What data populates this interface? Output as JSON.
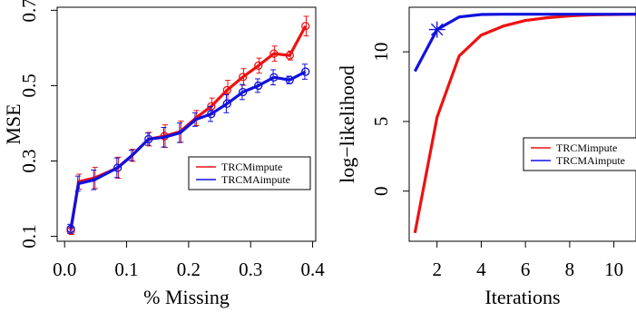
{
  "chart_data": [
    {
      "type": "line",
      "xlabel": "% Missing",
      "ylabel": "MSE",
      "xlim": [
        0.0,
        0.4
      ],
      "ylim": [
        0.1,
        0.7
      ],
      "x_ticks": [
        0.0,
        0.1,
        0.2,
        0.3,
        0.4
      ],
      "x_tick_labels": [
        "0.0",
        "0.1",
        "0.2",
        "0.3",
        "0.4"
      ],
      "y_ticks": [
        0.1,
        0.3,
        0.5,
        0.7
      ],
      "y_tick_labels": [
        "0.1",
        "0.3",
        "0.5",
        "0.7"
      ],
      "grid": false,
      "legend_position": "center-right",
      "x": [
        0.01,
        0.0225,
        0.048,
        0.0855,
        0.109,
        0.1355,
        0.161,
        0.1865,
        0.2115,
        0.2365,
        0.262,
        0.2875,
        0.3125,
        0.3375,
        0.363,
        0.3885
      ],
      "series": [
        {
          "name": "TRCMimpute",
          "color": "#ee1111",
          "values": [
            0.115,
            0.245,
            0.255,
            0.282,
            0.315,
            0.358,
            0.366,
            0.378,
            0.414,
            0.445,
            0.488,
            0.523,
            0.553,
            0.585,
            0.58,
            0.658
          ],
          "error": [
            0.01,
            0.02,
            0.028,
            0.028,
            0.016,
            0.018,
            0.03,
            0.028,
            0.02,
            0.022,
            0.026,
            0.022,
            0.02,
            0.02,
            0.012,
            0.026
          ],
          "markers": [
            true,
            false,
            false,
            false,
            false,
            false,
            true,
            false,
            false,
            true,
            true,
            true,
            true,
            true,
            true,
            true
          ]
        },
        {
          "name": "TRCMAimpute",
          "color": "#1111dd",
          "values": [
            0.12,
            0.24,
            0.25,
            0.282,
            0.315,
            0.358,
            0.363,
            0.375,
            0.41,
            0.425,
            0.452,
            0.483,
            0.5,
            0.522,
            0.515,
            0.537
          ],
          "error": [
            0.012,
            0.02,
            0.026,
            0.026,
            0.014,
            0.016,
            0.026,
            0.026,
            0.018,
            0.02,
            0.024,
            0.02,
            0.018,
            0.02,
            0.01,
            0.02
          ],
          "markers": [
            true,
            false,
            false,
            true,
            false,
            true,
            false,
            false,
            false,
            true,
            true,
            true,
            true,
            true,
            true,
            true
          ]
        }
      ]
    },
    {
      "type": "line",
      "xlabel": "Iterations",
      "ylabel": "log−likelihood",
      "xlim": [
        0.75,
        11.0
      ],
      "ylim": [
        -4.0,
        13.2
      ],
      "x_ticks": [
        2,
        4,
        6,
        8,
        10
      ],
      "x_tick_labels": [
        "2",
        "4",
        "6",
        "8",
        "10"
      ],
      "y_ticks": [
        0,
        5,
        10
      ],
      "y_tick_labels": [
        "0",
        "5",
        "10"
      ],
      "grid": false,
      "legend_position": "center-right",
      "x": [
        1,
        2,
        3,
        4,
        5,
        6,
        7,
        8,
        9,
        10,
        11
      ],
      "series": [
        {
          "name": "TRCMimpute",
          "color": "#ee1111",
          "values": [
            -3.0,
            5.3,
            9.7,
            11.2,
            11.85,
            12.25,
            12.45,
            12.58,
            12.65,
            12.68,
            12.7
          ]
        },
        {
          "name": "TRCMAimpute",
          "color": "#1111dd",
          "values": [
            8.6,
            11.6,
            12.5,
            12.68,
            12.7,
            12.7,
            12.7,
            12.7,
            12.7,
            12.7,
            12.7
          ],
          "highlight_point": {
            "x": 2,
            "y": 11.6,
            "marker": "asterisk"
          }
        }
      ]
    }
  ]
}
